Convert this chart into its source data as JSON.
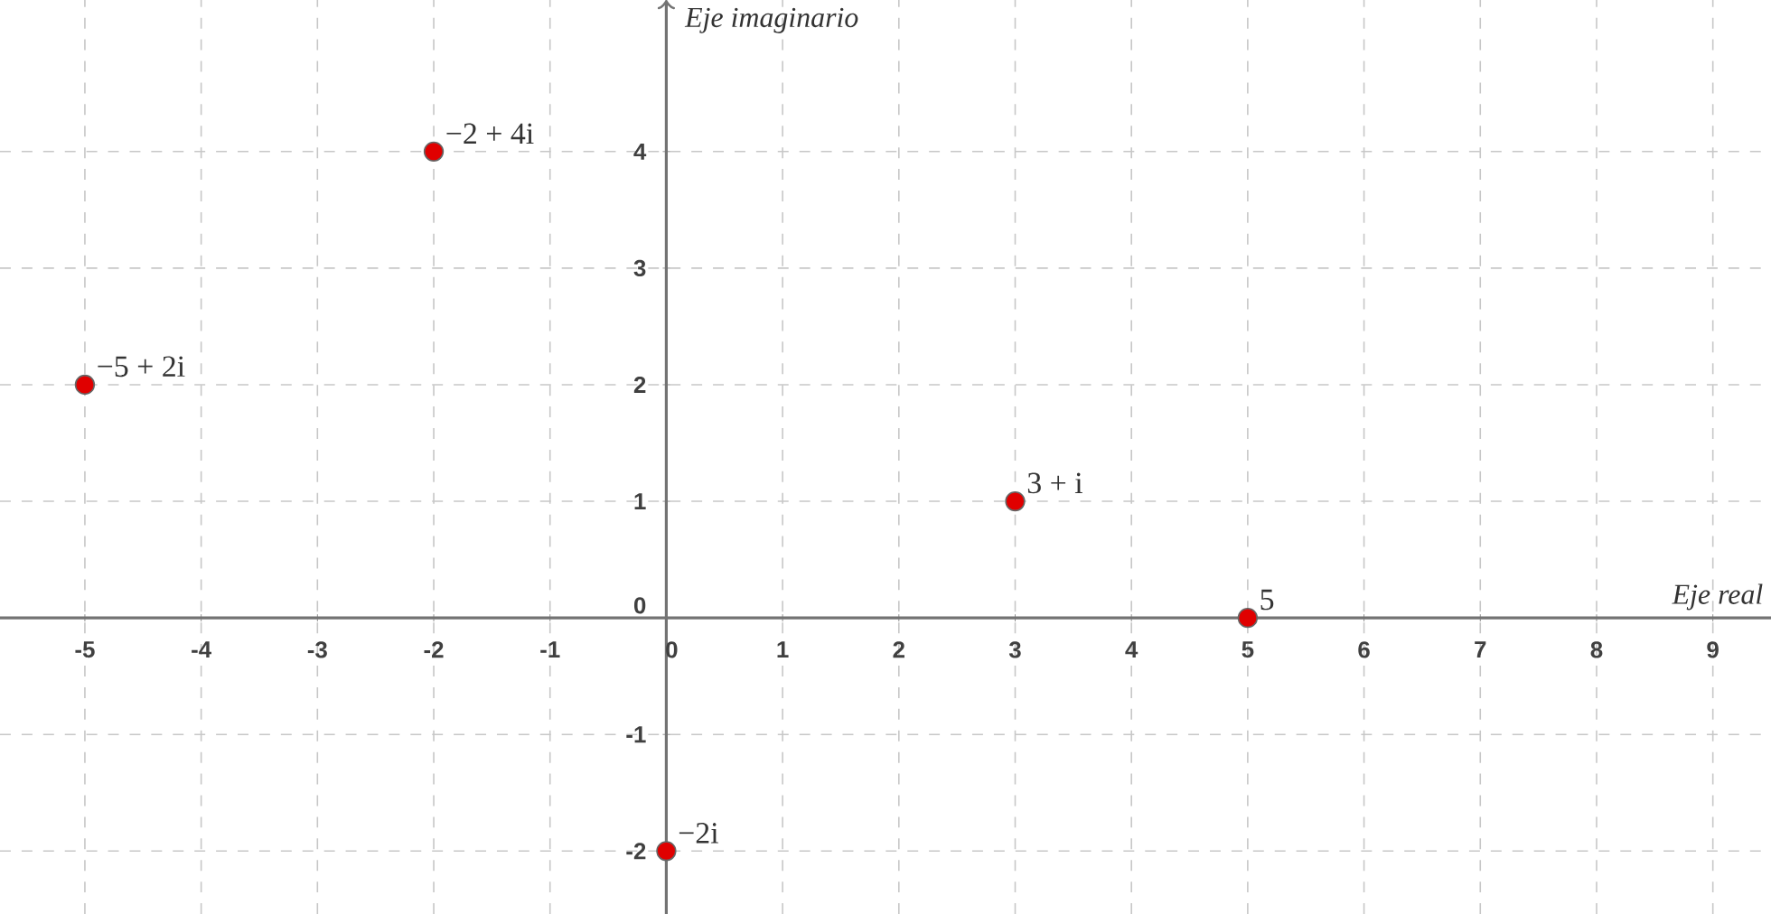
{
  "chart_data": {
    "type": "scatter",
    "xlabel": "Eje real",
    "ylabel": "Eje imaginario",
    "x": [
      -5,
      -2,
      3,
      5,
      0
    ],
    "series": [
      {
        "color": "#e00000",
        "values": [
          2,
          4,
          1,
          0,
          -2
        ]
      }
    ],
    "annotations": [
      {
        "text": "−5 + 2i",
        "x": -5,
        "y": 2
      },
      {
        "text": "−2 + 4i",
        "x": -2,
        "y": 4
      },
      {
        "text": "3 + i",
        "x": 3,
        "y": 1
      },
      {
        "text": "5",
        "x": 5,
        "y": 0
      },
      {
        "text": "−2i",
        "x": 0,
        "y": -2
      }
    ],
    "xlim": [
      -5.73,
      9.5
    ],
    "ylim": [
      -2.54,
      5.3
    ],
    "xticks": [
      -5,
      -4,
      -3,
      -2,
      -1,
      0,
      1,
      2,
      3,
      4,
      5,
      6,
      7,
      8,
      9
    ],
    "yticks": [
      -2,
      -1,
      0,
      1,
      2,
      3,
      4
    ],
    "grid": true,
    "marker": "circle"
  }
}
